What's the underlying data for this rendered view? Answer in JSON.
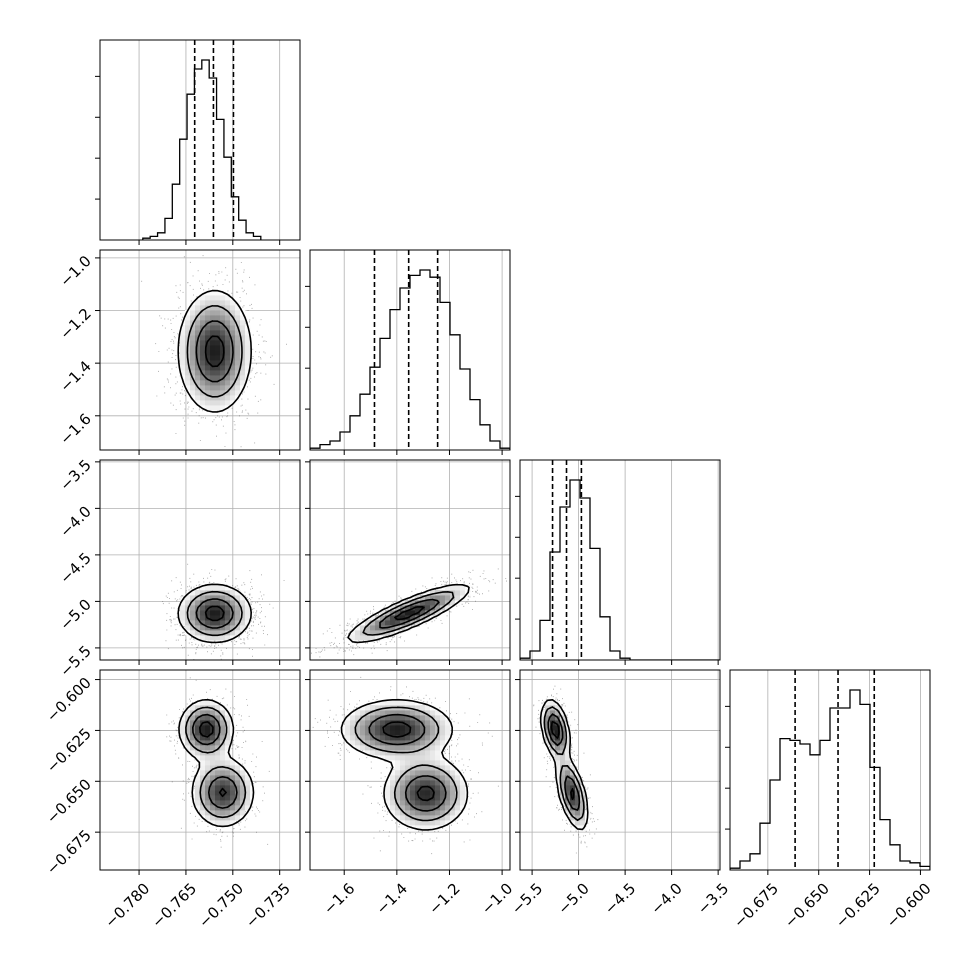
{
  "chart_data": {
    "type": "corner",
    "parameters": [
      {
        "range": [
          -0.7925,
          -0.7285
        ],
        "ticks": [
          -0.78,
          -0.765,
          -0.75,
          -0.735
        ],
        "tick_labels": [
          "−0.780",
          "−0.765",
          "−0.750",
          "−0.735"
        ],
        "quantiles": [
          -0.7622,
          -0.7562,
          -0.7498
        ],
        "hist": {
          "edges_start": -0.7788,
          "bin_width": 0.00236,
          "counts": [
            0.01,
            0.02,
            0.04,
            0.12,
            0.31,
            0.56,
            0.81,
            0.95,
            1.0,
            0.9,
            0.67,
            0.46,
            0.24,
            0.11,
            0.04,
            0.02
          ]
        }
      },
      {
        "range": [
          -1.73,
          -0.97
        ],
        "ticks": [
          -1.6,
          -1.4,
          -1.2,
          -1.0
        ],
        "tick_labels": [
          "−1.6",
          "−1.4",
          "−1.2",
          "−1.0"
        ],
        "quantiles": [
          -1.485,
          -1.355,
          -1.245
        ],
        "hist": {
          "edges_start": -1.73,
          "bin_width": 0.038,
          "counts": [
            0.01,
            0.03,
            0.05,
            0.1,
            0.19,
            0.31,
            0.46,
            0.62,
            0.78,
            0.9,
            0.97,
            1.0,
            0.96,
            0.82,
            0.64,
            0.45,
            0.28,
            0.14,
            0.05,
            0.01
          ]
        }
      },
      {
        "range": [
          -5.63,
          -3.48
        ],
        "ticks": [
          -5.5,
          -5.0,
          -4.5,
          -4.0,
          -3.5
        ],
        "tick_labels": [
          "−5.5",
          "−5.0",
          "−4.5",
          "−4.0",
          "−3.5"
        ],
        "quantiles": [
          -5.28,
          -5.13,
          -4.97
        ],
        "hist": {
          "edges_start": -5.63,
          "bin_width": 0.1075,
          "counts": [
            0.01,
            0.05,
            0.22,
            0.6,
            0.85,
            1.0,
            0.9,
            0.62,
            0.24,
            0.05,
            0.01,
            0.0,
            0.0,
            0.0,
            0.0,
            0.0,
            0.0,
            0.0,
            0.0,
            0.0
          ]
        }
      },
      {
        "range": [
          -0.6936,
          -0.5953
        ],
        "ticks": [
          -0.675,
          -0.65,
          -0.625,
          -0.6
        ],
        "tick_labels": [
          "−0.675",
          "−0.650",
          "−0.625",
          "−0.600"
        ],
        "quantiles": [
          -0.6616,
          -0.6405,
          -0.6227
        ],
        "hist": {
          "edges_start": -0.6936,
          "bin_width": 0.004915,
          "counts": [
            0.01,
            0.05,
            0.09,
            0.26,
            0.5,
            0.73,
            0.72,
            0.7,
            0.64,
            0.72,
            0.9,
            0.9,
            1.0,
            0.92,
            0.57,
            0.28,
            0.14,
            0.05,
            0.04,
            0.02
          ]
        }
      }
    ],
    "contour_levels": [
      0.5,
      1.0,
      1.5,
      2.0
    ],
    "pairs": [
      {
        "row": 1,
        "col": 0,
        "modes": [
          {
            "cx": -0.7558,
            "cy": -1.355,
            "sx": 0.0058,
            "sy": 0.115,
            "rho": 0.0,
            "w": 1.0
          }
        ]
      },
      {
        "row": 2,
        "col": 0,
        "modes": [
          {
            "cx": -0.7558,
            "cy": -5.13,
            "sx": 0.0058,
            "sy": 0.155,
            "rho": 0.0,
            "w": 1.0
          }
        ]
      },
      {
        "row": 2,
        "col": 1,
        "modes": [
          {
            "cx": -1.355,
            "cy": -5.13,
            "sx": 0.115,
            "sy": 0.155,
            "rho": 0.85,
            "w": 1.0
          }
        ]
      },
      {
        "row": 3,
        "col": 0,
        "modes": [
          {
            "cx": -0.7585,
            "cy": -0.6245,
            "sx": 0.0043,
            "sy": 0.0072,
            "rho": 0.0,
            "w": 1.0
          },
          {
            "cx": -0.7532,
            "cy": -0.6555,
            "sx": 0.005,
            "sy": 0.0085,
            "rho": 0.0,
            "w": 0.9
          }
        ]
      },
      {
        "row": 3,
        "col": 1,
        "modes": [
          {
            "cx": -1.4,
            "cy": -0.6245,
            "sx": 0.105,
            "sy": 0.0072,
            "rho": 0.0,
            "w": 1.0
          },
          {
            "cx": -1.29,
            "cy": -0.656,
            "sx": 0.08,
            "sy": 0.009,
            "rho": 0.0,
            "w": 0.95
          }
        ]
      },
      {
        "row": 3,
        "col": 2,
        "modes": [
          {
            "cx": -5.25,
            "cy": -0.6245,
            "sx": 0.075,
            "sy": 0.0072,
            "rho": -0.35,
            "w": 1.0
          },
          {
            "cx": -5.07,
            "cy": -0.656,
            "sx": 0.085,
            "sy": 0.009,
            "rho": -0.55,
            "w": 0.9
          }
        ]
      }
    ],
    "grid": true,
    "axis_labels": [
      "",
      "",
      "",
      ""
    ]
  }
}
